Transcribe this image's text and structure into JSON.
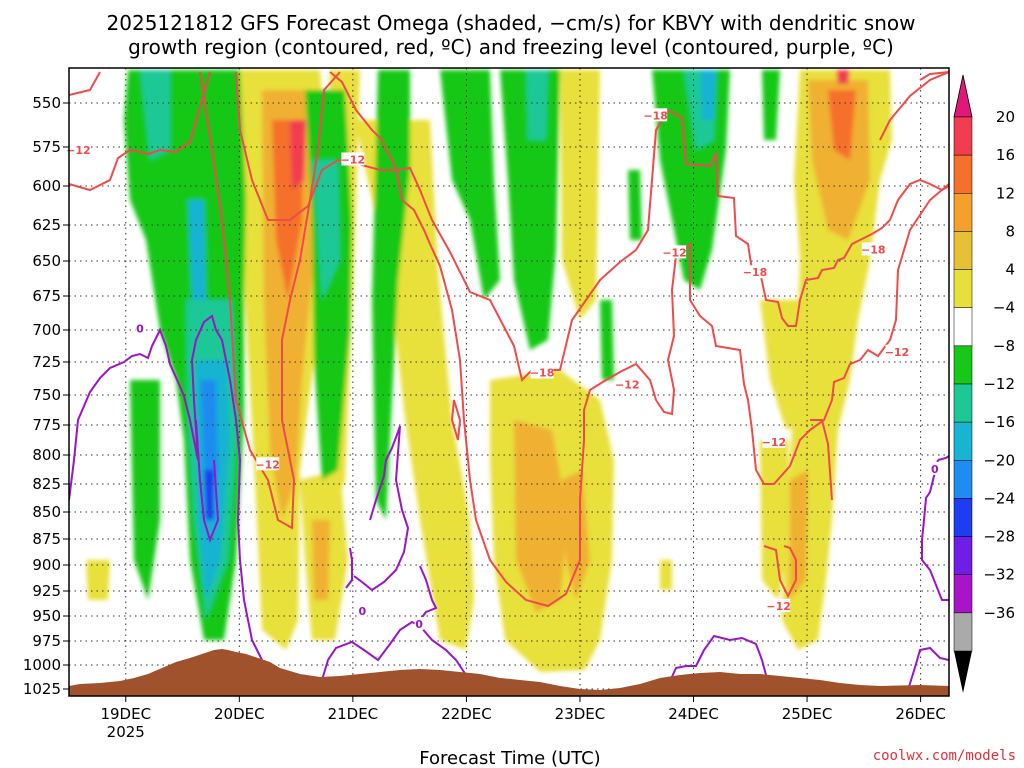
{
  "chart_data": {
    "type": "time-height cross section",
    "title_line1": "2025121812 GFS Forecast Omega (shaded, −cm/s) for KBVY with dendritic snow",
    "title_line2": "growth region (contoured, red, ºC) and freezing level (contoured, purple, ºC)",
    "xlabel": "Forecast Time (UTC)",
    "credit": "coolwx.com/models",
    "x_range_hours": [
      -12,
      174
    ],
    "x_ticks": [
      {
        "hour": 0,
        "label": "19DEC",
        "sublabel": "2025"
      },
      {
        "hour": 24,
        "label": "20DEC",
        "sublabel": ""
      },
      {
        "hour": 48,
        "label": "21DEC",
        "sublabel": ""
      },
      {
        "hour": 72,
        "label": "22DEC",
        "sublabel": ""
      },
      {
        "hour": 96,
        "label": "23DEC",
        "sublabel": ""
      },
      {
        "hour": 120,
        "label": "24DEC",
        "sublabel": ""
      },
      {
        "hour": 144,
        "label": "25DEC",
        "sublabel": ""
      },
      {
        "hour": 168,
        "label": "26DEC",
        "sublabel": ""
      }
    ],
    "y_levels_hpa": [
      550,
      575,
      600,
      625,
      650,
      675,
      700,
      725,
      750,
      775,
      800,
      825,
      850,
      875,
      900,
      925,
      950,
      975,
      1000,
      1025
    ],
    "y_labels": [
      "550",
      "575",
      "600",
      "625",
      "650",
      "675",
      "700",
      "725",
      "750",
      "775",
      "800",
      "825",
      "850",
      "875",
      "900",
      "925",
      "950",
      "975",
      "1000",
      "1025"
    ],
    "colorbar": {
      "labels": [
        "20",
        "16",
        "12",
        "8",
        "4",
        "−4",
        "−8",
        "−12",
        "−16",
        "−20",
        "−24",
        "−28",
        "−32",
        "−36"
      ],
      "colors": [
        "#f23c50",
        "#f5702a",
        "#f5a02a",
        "#e8c035",
        "#e8e03a",
        "#ffffff",
        "#18c818",
        "#1ec896",
        "#18b4d2",
        "#1e8cf0",
        "#1e3cf0",
        "#6e1ee6",
        "#aa14c8",
        "#aaaaaa"
      ],
      "top_cap_color": "#e0187a",
      "bottom_cap_color": "#000000"
    },
    "terrain_color": "#a0522d",
    "snow_growth_contour_color": "#f04a4a",
    "freezing_contour_color": "#9a14c8",
    "contour_labels": [
      {
        "text": "−12",
        "hour": -10,
        "hpa": 577
      },
      {
        "text": "−12",
        "hour": 48,
        "hpa": 583
      },
      {
        "text": "−18",
        "hour": 112,
        "hpa": 557
      },
      {
        "text": "−12",
        "hour": 116,
        "hpa": 644
      },
      {
        "text": "−18",
        "hour": 133,
        "hpa": 658
      },
      {
        "text": "−18",
        "hour": 158,
        "hpa": 642
      },
      {
        "text": "−12",
        "hour": 163,
        "hpa": 717
      },
      {
        "text": "−18",
        "hour": 88,
        "hpa": 733
      },
      {
        "text": "−12",
        "hour": 106,
        "hpa": 742
      },
      {
        "text": "−12",
        "hour": 30,
        "hpa": 808
      },
      {
        "text": "−12",
        "hour": 137,
        "hpa": 789
      },
      {
        "text": "−12",
        "hour": 138,
        "hpa": 940
      },
      {
        "text": "0",
        "hour": 3,
        "hpa": 699
      },
      {
        "text": "0",
        "hour": 50,
        "hpa": 945
      },
      {
        "text": "0",
        "hour": 62,
        "hpa": 958
      },
      {
        "text": "0",
        "hour": 171,
        "hpa": 812
      }
    ]
  }
}
